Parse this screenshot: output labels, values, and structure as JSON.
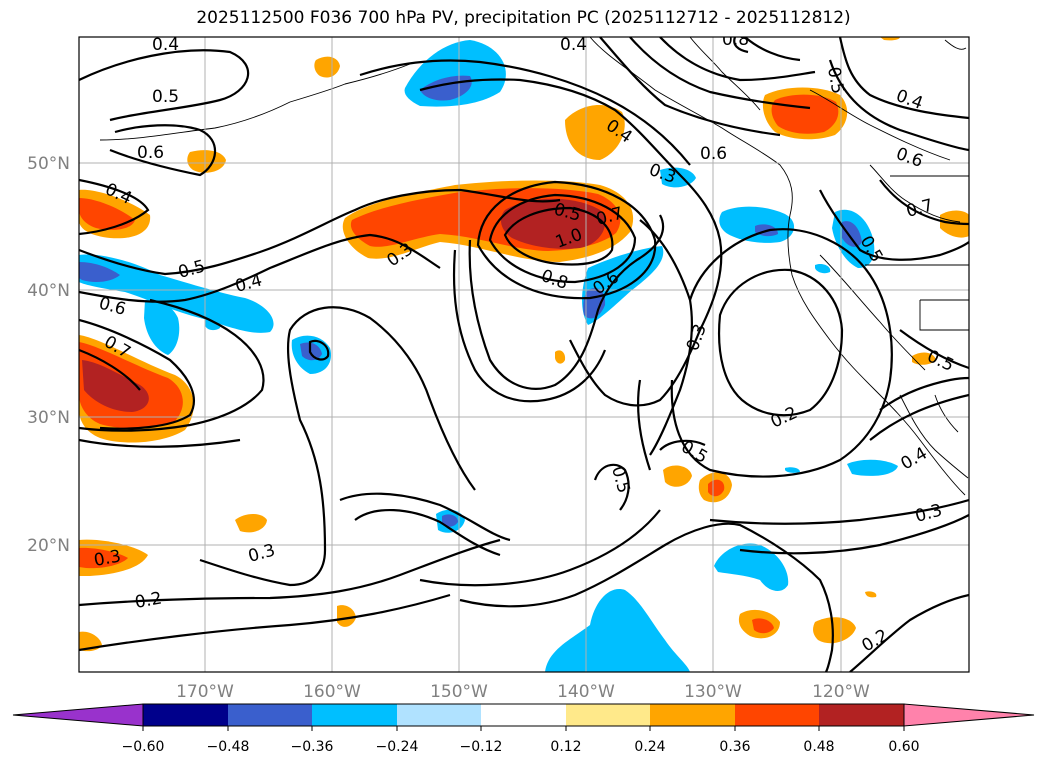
{
  "title": "2025112500 F036 700 hPa PV, precipitation PC (2025112712 - 2025112812)",
  "colors": {
    "dark_red": "#b22222",
    "red_orange": "#ff4500",
    "orange": "#ffa500",
    "light_yellow": "#ffe98a",
    "blue": "#3a5fcd",
    "sky_blue": "#00bfff",
    "light_blue": "#b0e2ff",
    "navy": "#00008b",
    "purple": "#9932cc",
    "pink": "#ff82ab"
  },
  "map": {
    "lat_labels": [
      "50°N",
      "40°N",
      "30°N",
      "20°N"
    ],
    "lon_labels": [
      "170°W",
      "160°W",
      "150°W",
      "140°W",
      "130°W",
      "120°W"
    ],
    "contour_labels": [
      "0.4",
      "0.4",
      "0.8",
      "0.5",
      "0.5",
      "0.4",
      "0.6",
      "0.4",
      "0.3",
      "0.6",
      "0.6",
      "0.4",
      "0.5",
      "0.7",
      "0.3",
      "0.7",
      "1.0",
      "0.5",
      "0.5",
      "0.8",
      "0.6",
      "0.4",
      "0.6",
      "0.3",
      "0.7",
      "0.5",
      "0.2",
      "0.5",
      "0.5",
      "0.4",
      "0.3",
      "0.3",
      "0.3",
      "0.2",
      "0.2"
    ]
  },
  "colorbar": {
    "tick_labels": [
      "−0.60",
      "−0.48",
      "−0.36",
      "−0.24",
      "−0.12",
      "0.12",
      "0.24",
      "0.36",
      "0.48",
      "0.60"
    ],
    "colors": [
      "#9932cc",
      "#00008b",
      "#3a5fcd",
      "#00bfff",
      "#b0e2ff",
      "#ffffff",
      "#ffe98a",
      "#ffa500",
      "#ff4500",
      "#b22222",
      "#ff82ab"
    ]
  }
}
